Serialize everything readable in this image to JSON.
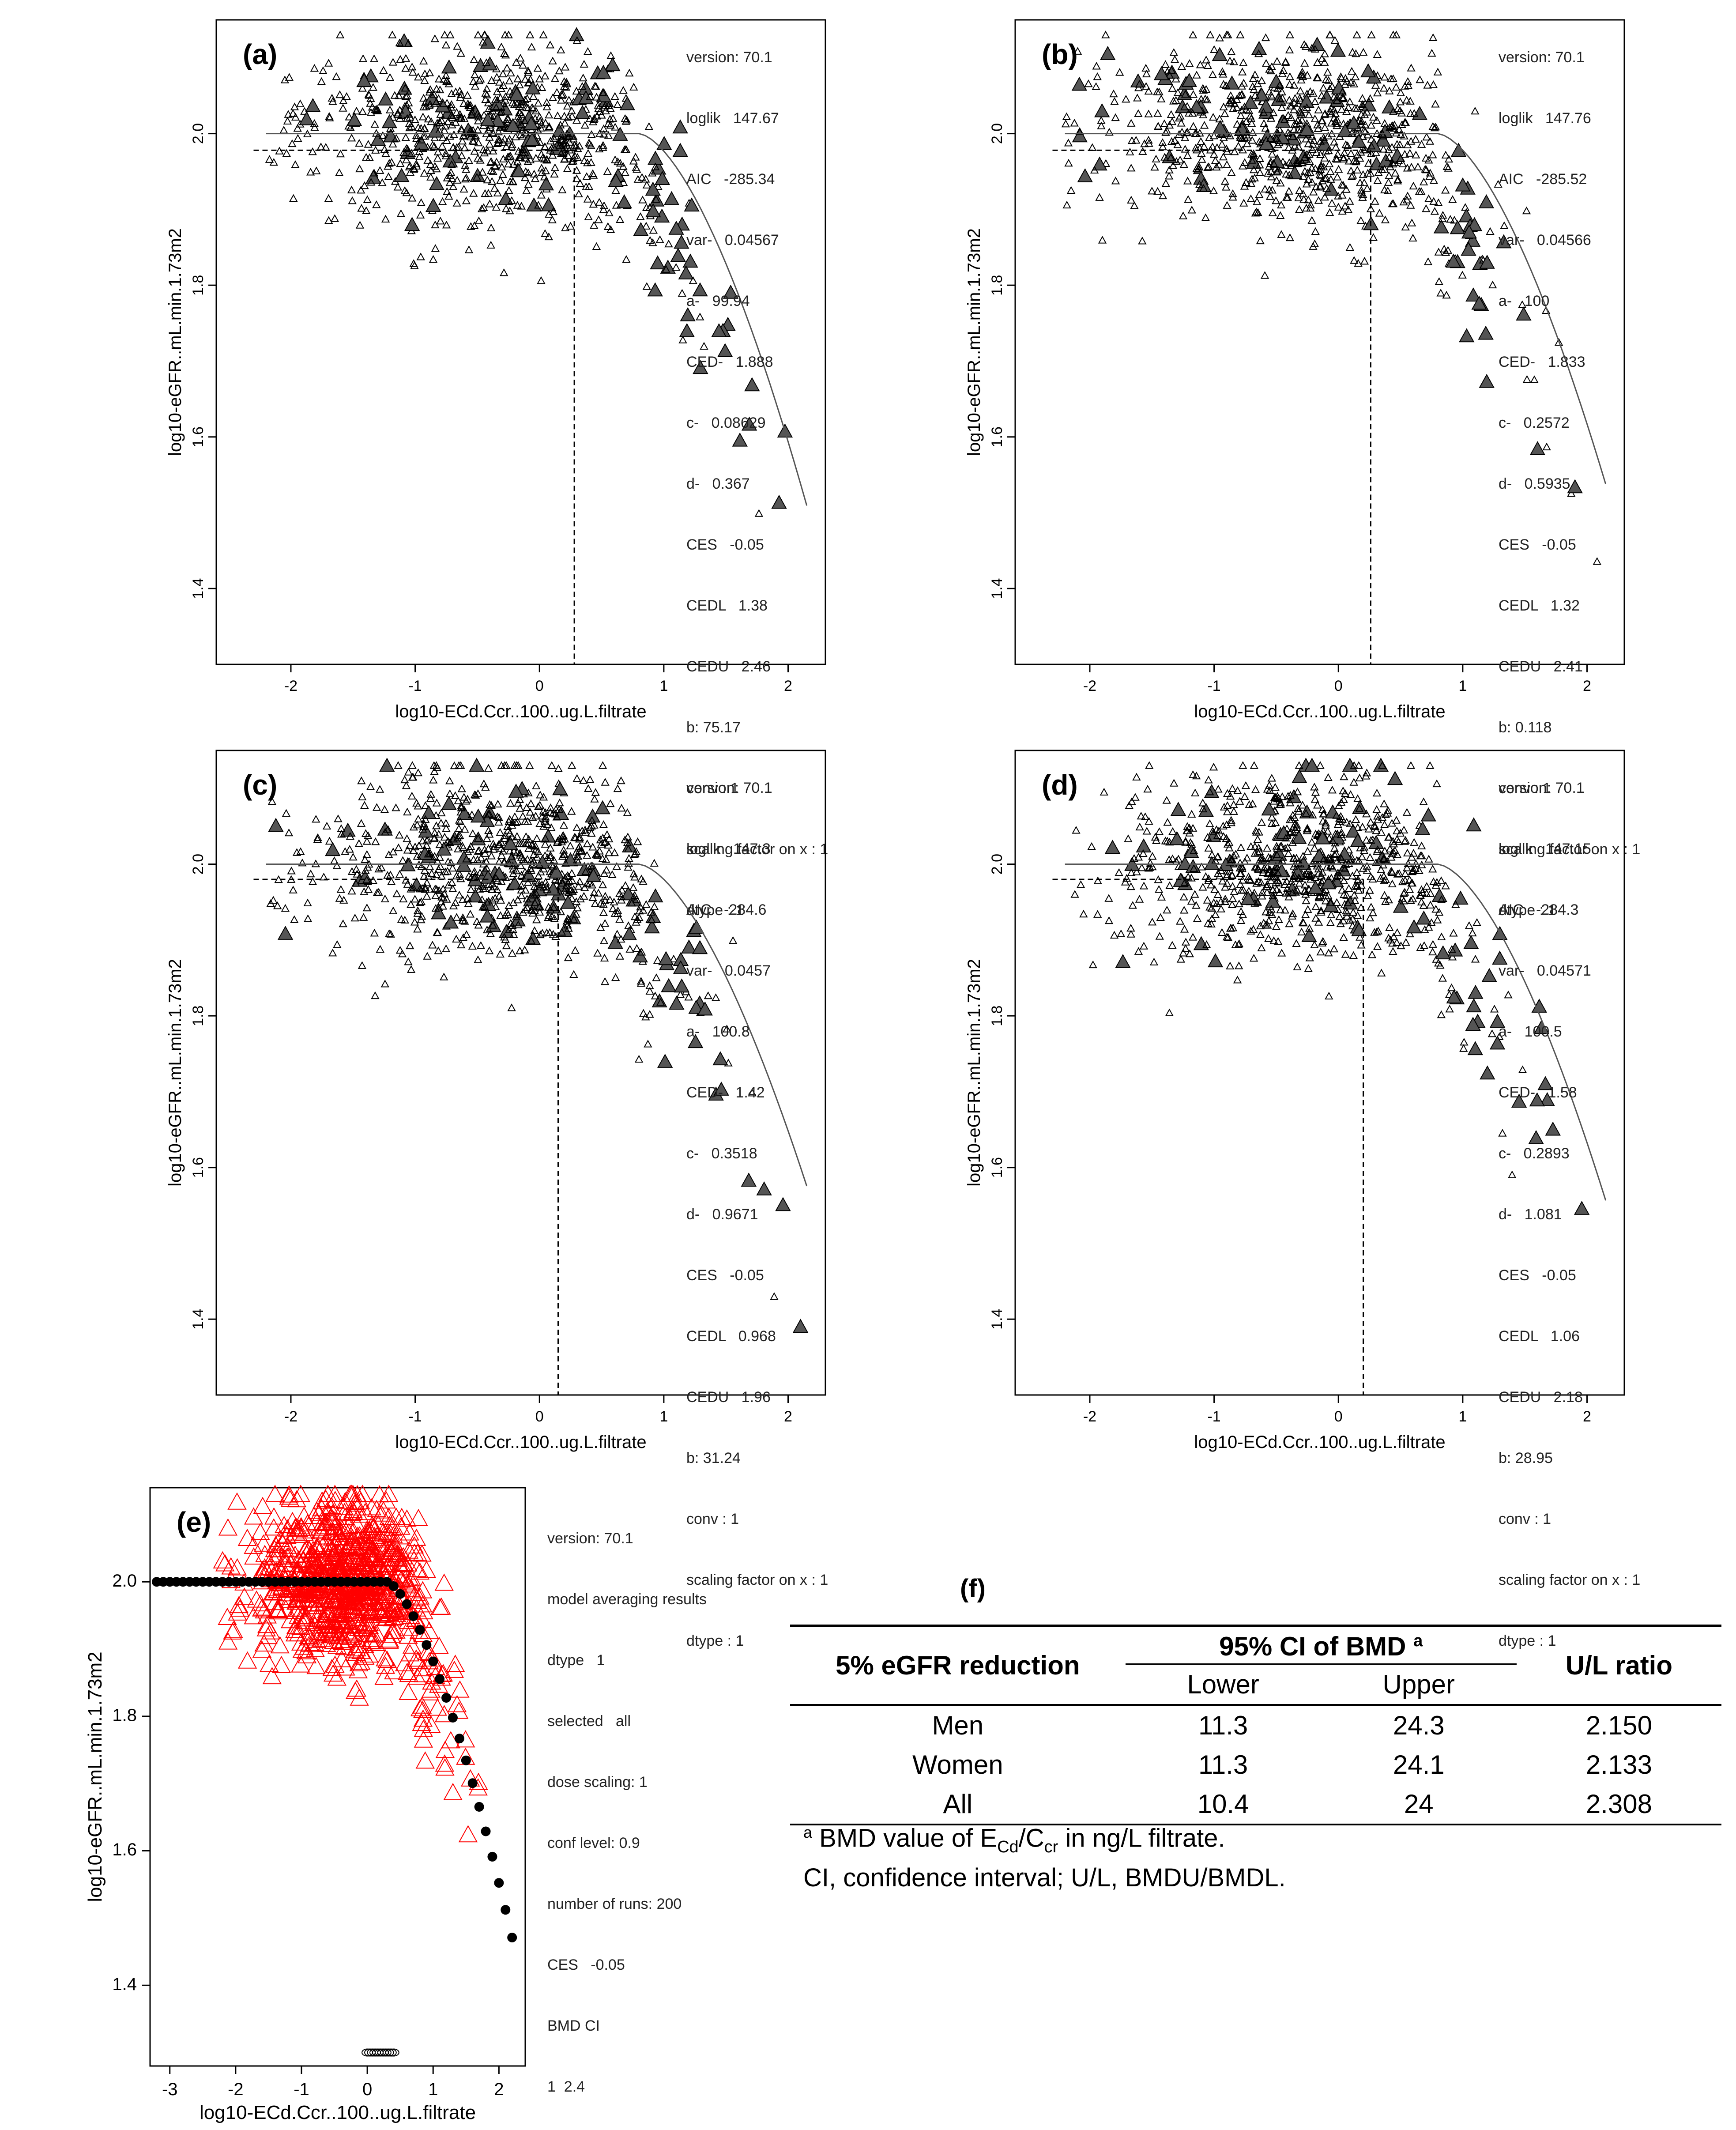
{
  "panels": [
    {
      "label": "(a)",
      "xlabel": "log10-ECd.Ccr..100..ug.L.filtrate",
      "ylabel": "log10-eGFR..mL.min.1.73m2",
      "xticks": [
        "-2",
        "-1",
        "0",
        "1",
        "2"
      ],
      "yticks": [
        "1.4",
        "1.6",
        "1.8",
        "2.0"
      ],
      "params": [
        "version: 70.1",
        "loglik   147.67",
        "AIC   -285.34",
        "var-   0.04567",
        "a-   99.94",
        "CED-   1.888",
        "c-   0.08629",
        "d-   0.367",
        "CES   -0.05",
        "CEDL   1.38",
        "CEDU   2.46",
        "b: 75.17",
        "conv : 1",
        "scaling factor on x : 1",
        "dtype : 1"
      ]
    },
    {
      "label": "(b)",
      "xlabel": "log10-ECd.Ccr..100..ug.L.filtrate",
      "ylabel": "log10-eGFR..mL.min.1.73m2",
      "xticks": [
        "-2",
        "-1",
        "0",
        "1",
        "2"
      ],
      "yticks": [
        "1.4",
        "1.6",
        "1.8",
        "2.0"
      ],
      "params": [
        "version: 70.1",
        "loglik   147.76",
        "AIC   -285.52",
        "var-   0.04566",
        "a-   100",
        "CED-   1.833",
        "c-   0.2572",
        "d-   0.5935",
        "CES   -0.05",
        "CEDL   1.32",
        "CEDU   2.41",
        "b: 0.118",
        "conv : 1",
        "scaling factor on x : 1",
        "dtype : 1"
      ]
    },
    {
      "label": "(c)",
      "xlabel": "log10-ECd.Ccr..100..ug.L.filtrate",
      "ylabel": "log10-eGFR..mL.min.1.73m2",
      "xticks": [
        "-2",
        "-1",
        "0",
        "1",
        "2"
      ],
      "yticks": [
        "1.4",
        "1.6",
        "1.8",
        "2.0"
      ],
      "params": [
        "version: 70.1",
        "loglik   147.3",
        "AIC   -284.6",
        "var-   0.0457",
        "a-   100.8",
        "CED-   1.42",
        "c-   0.3518",
        "d-   0.9671",
        "CES   -0.05",
        "CEDL   0.968",
        "CEDU   1.96",
        "b: 31.24",
        "conv : 1",
        "scaling factor on x : 1",
        "dtype : 1"
      ]
    },
    {
      "label": "(d)",
      "xlabel": "log10-ECd.Ccr..100..ug.L.filtrate",
      "ylabel": "log10-eGFR..mL.min.1.73m2",
      "xticks": [
        "-2",
        "-1",
        "0",
        "1",
        "2"
      ],
      "yticks": [
        "1.4",
        "1.6",
        "1.8",
        "2.0"
      ],
      "params": [
        "version: 70.1",
        "loglik   147.15",
        "AIC   -284.3",
        "var-   0.04571",
        "a-   100.5",
        "CED-   1.58",
        "c-   0.2893",
        "d-   1.081",
        "CES   -0.05",
        "CEDL   1.06",
        "CEDU   2.18",
        "b: 28.95",
        "conv : 1",
        "scaling factor on x : 1",
        "dtype : 1"
      ]
    },
    {
      "label": "(e)",
      "xlabel": "log10-ECd.Ccr..100..ug.L.filtrate",
      "ylabel": "log10-eGFR..mL.min.1.73m2",
      "xticks": [
        "-3",
        "-2",
        "-1",
        "0",
        "1",
        "2"
      ],
      "yticks": [
        "1.4",
        "1.6",
        "1.8",
        "2.0"
      ],
      "params": [
        "version: 70.1",
        "model averaging results",
        "dtype   1",
        "selected   all",
        "dose scaling: 1",
        "conf level: 0.9",
        "number of runs: 200",
        "CES   -0.05",
        "BMD CI",
        "1  2.4"
      ]
    }
  ],
  "chart_data": [
    {
      "type": "scatter",
      "panel": "a",
      "xlim": [
        -2.6,
        2.3
      ],
      "ylim": [
        1.3,
        2.15
      ],
      "curve": {
        "plateau": 2.0,
        "end_x": 2.2,
        "end_y": 1.48
      },
      "ced_x": 0.28,
      "ced_y": 1.978,
      "colors": {
        "points": "#000000",
        "curve": "#555555"
      }
    },
    {
      "type": "scatter",
      "panel": "b",
      "xlim": [
        -2.6,
        2.3
      ],
      "ylim": [
        1.3,
        2.15
      ],
      "curve": {
        "plateau": 2.0,
        "end_x": 2.2,
        "end_y": 1.51
      },
      "ced_x": 0.26,
      "ced_y": 1.978,
      "colors": {
        "points": "#000000",
        "curve": "#555555"
      }
    },
    {
      "type": "scatter",
      "panel": "c",
      "xlim": [
        -2.6,
        2.3
      ],
      "ylim": [
        1.3,
        2.15
      ],
      "curve": {
        "plateau": 2.0,
        "end_x": 2.2,
        "end_y": 1.55
      },
      "ced_x": 0.15,
      "ced_y": 1.98,
      "colors": {
        "points": "#000000",
        "curve": "#555555"
      }
    },
    {
      "type": "scatter",
      "panel": "d",
      "xlim": [
        -2.6,
        2.3
      ],
      "ylim": [
        1.3,
        2.15
      ],
      "curve": {
        "plateau": 2.0,
        "end_x": 2.2,
        "end_y": 1.53
      },
      "ced_x": 0.2,
      "ced_y": 1.98,
      "colors": {
        "points": "#000000",
        "curve": "#555555"
      }
    },
    {
      "type": "scatter",
      "panel": "e",
      "xlim": [
        -3.3,
        2.4
      ],
      "ylim": [
        1.28,
        2.14
      ],
      "bmd_ci": [
        1,
        2.4
      ],
      "colors": {
        "points": "#ff0000",
        "curve": "#000000"
      }
    }
  ],
  "table": {
    "label": "(f)",
    "col_group": "5% eGFR reduction",
    "ci_header": "95% CI of BMD",
    "ci_sup": "a",
    "ratio_header": "U/L ratio",
    "lower": "Lower",
    "upper": "Upper",
    "rows": [
      {
        "group": "Men",
        "lower": "11.3",
        "upper": "24.3",
        "ratio": "2.150"
      },
      {
        "group": "Women",
        "lower": "11.3",
        "upper": "24.1",
        "ratio": "2.133"
      },
      {
        "group": "All",
        "lower": "10.4",
        "upper": "24",
        "ratio": "2.308"
      }
    ],
    "footnote1_sup": "a",
    "footnote1_pre": " BMD value of E",
    "footnote1_sub1": "Cd",
    "footnote1_mid": "/C",
    "footnote1_sub2": "cr",
    "footnote1_post": " in ng/L filtrate.",
    "footnote2": "CI, confidence interval; U/L, BMDU/BMDL."
  }
}
